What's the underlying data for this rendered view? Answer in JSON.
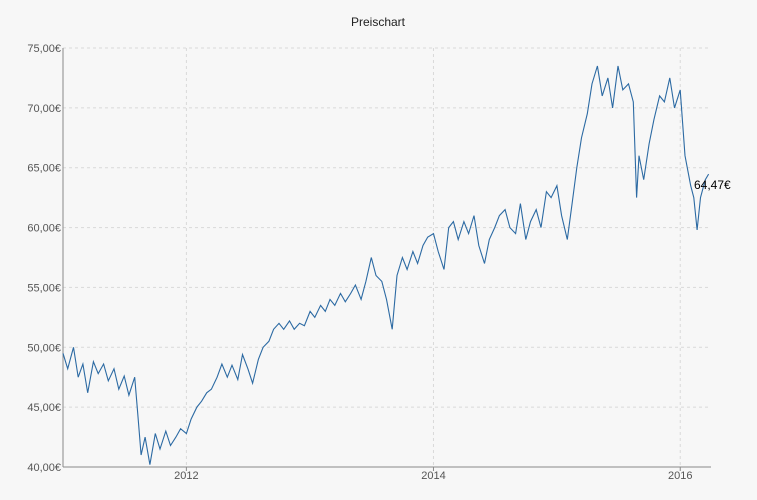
{
  "chart_data": {
    "type": "line",
    "title": "Preischart",
    "xlabel": "",
    "ylabel": "",
    "ylim": [
      40,
      75
    ],
    "xlim": [
      "2011-01-01",
      "2016-04-01"
    ],
    "y_ticks": [
      {
        "value": 75,
        "label": "75,00€"
      },
      {
        "value": 70,
        "label": "70,00€"
      },
      {
        "value": 65,
        "label": "65,00€"
      },
      {
        "value": 60,
        "label": "60,00€"
      },
      {
        "value": 55,
        "label": "55,00€"
      },
      {
        "value": 50,
        "label": "50,00€"
      },
      {
        "value": 45,
        "label": "45,00€"
      },
      {
        "value": 40,
        "label": "40,00€"
      }
    ],
    "x_ticks": [
      {
        "value": "2012-01-01",
        "label": "2012"
      },
      {
        "value": "2014-01-01",
        "label": "2014"
      },
      {
        "value": "2016-01-01",
        "label": "2016"
      }
    ],
    "grid": true,
    "line_color": "#2c6aa3",
    "last_value_label": "64,47€",
    "series": [
      {
        "x": [
          "2011-01-01",
          "2011-01-15",
          "2011-02-01",
          "2011-02-15",
          "2011-03-01",
          "2011-03-15",
          "2011-04-01",
          "2011-04-15",
          "2011-05-01",
          "2011-05-15",
          "2011-06-01",
          "2011-06-15",
          "2011-07-01",
          "2011-07-15",
          "2011-08-01",
          "2011-08-10",
          "2011-08-20",
          "2011-09-01",
          "2011-09-15",
          "2011-10-01",
          "2011-10-15",
          "2011-11-01",
          "2011-11-15",
          "2011-12-01",
          "2011-12-15",
          "2012-01-01",
          "2012-01-15",
          "2012-02-01",
          "2012-02-15",
          "2012-03-01",
          "2012-03-15",
          "2012-04-01",
          "2012-04-15",
          "2012-05-01",
          "2012-05-15",
          "2012-06-01",
          "2012-06-15",
          "2012-07-01",
          "2012-07-15",
          "2012-08-01",
          "2012-08-15",
          "2012-09-01",
          "2012-09-15",
          "2012-10-01",
          "2012-10-15",
          "2012-11-01",
          "2012-11-15",
          "2012-12-01",
          "2012-12-15",
          "2013-01-01",
          "2013-01-15",
          "2013-02-01",
          "2013-02-15",
          "2013-03-01",
          "2013-03-15",
          "2013-04-01",
          "2013-04-15",
          "2013-05-01",
          "2013-05-15",
          "2013-06-01",
          "2013-06-15",
          "2013-07-01",
          "2013-07-15",
          "2013-08-01",
          "2013-08-15",
          "2013-09-01",
          "2013-09-15",
          "2013-10-01",
          "2013-10-15",
          "2013-11-01",
          "2013-11-15",
          "2013-12-01",
          "2013-12-15",
          "2014-01-01",
          "2014-01-15",
          "2014-02-01",
          "2014-02-15",
          "2014-03-01",
          "2014-03-15",
          "2014-04-01",
          "2014-04-15",
          "2014-05-01",
          "2014-05-15",
          "2014-06-01",
          "2014-06-15",
          "2014-07-01",
          "2014-07-15",
          "2014-08-01",
          "2014-08-15",
          "2014-09-01",
          "2014-09-15",
          "2014-10-01",
          "2014-10-15",
          "2014-11-01",
          "2014-11-15",
          "2014-12-01",
          "2014-12-15",
          "2015-01-01",
          "2015-01-15",
          "2015-02-01",
          "2015-02-15",
          "2015-03-01",
          "2015-03-15",
          "2015-04-01",
          "2015-04-15",
          "2015-05-01",
          "2015-05-15",
          "2015-06-01",
          "2015-06-15",
          "2015-07-01",
          "2015-07-15",
          "2015-08-01",
          "2015-08-15",
          "2015-08-25",
          "2015-09-01",
          "2015-09-15",
          "2015-10-01",
          "2015-10-15",
          "2015-11-01",
          "2015-11-15",
          "2015-12-01",
          "2015-12-15",
          "2016-01-01",
          "2016-01-15",
          "2016-02-01",
          "2016-02-10",
          "2016-02-20",
          "2016-03-01",
          "2016-03-15",
          "2016-03-25"
        ],
        "y": [
          49.5,
          48.2,
          50.0,
          47.5,
          48.6,
          46.2,
          48.8,
          47.8,
          48.6,
          47.2,
          48.2,
          46.5,
          47.6,
          46.0,
          47.5,
          44.5,
          41.0,
          42.5,
          40.2,
          42.8,
          41.5,
          43.0,
          41.8,
          42.5,
          43.2,
          42.8,
          44.0,
          45.0,
          45.5,
          46.2,
          46.5,
          47.5,
          48.6,
          47.5,
          48.5,
          47.3,
          49.4,
          48.2,
          47.0,
          49.0,
          50.0,
          50.5,
          51.5,
          52.0,
          51.5,
          52.2,
          51.5,
          52.0,
          51.8,
          53.0,
          52.5,
          53.5,
          53.0,
          54.0,
          53.5,
          54.5,
          53.8,
          54.5,
          55.2,
          54.0,
          55.5,
          57.5,
          56.0,
          55.5,
          54.0,
          51.5,
          56.0,
          57.5,
          56.5,
          58.0,
          57.0,
          58.5,
          59.2,
          59.5,
          58.0,
          56.5,
          60.0,
          60.5,
          59.0,
          60.5,
          59.5,
          61.0,
          58.5,
          57.0,
          59.0,
          60.0,
          61.0,
          61.5,
          60.0,
          59.5,
          62.0,
          59.0,
          60.5,
          61.5,
          60.0,
          63.0,
          62.5,
          63.5,
          61.0,
          59.0,
          62.0,
          65.0,
          67.5,
          69.5,
          72.0,
          73.5,
          71.0,
          72.5,
          70.0,
          73.5,
          71.5,
          72.0,
          70.5,
          62.5,
          66.0,
          64.0,
          67.0,
          69.0,
          71.0,
          70.5,
          72.5,
          70.0,
          71.5,
          66.0,
          63.5,
          62.5,
          59.8,
          62.5,
          64.0,
          64.47
        ]
      }
    ]
  }
}
